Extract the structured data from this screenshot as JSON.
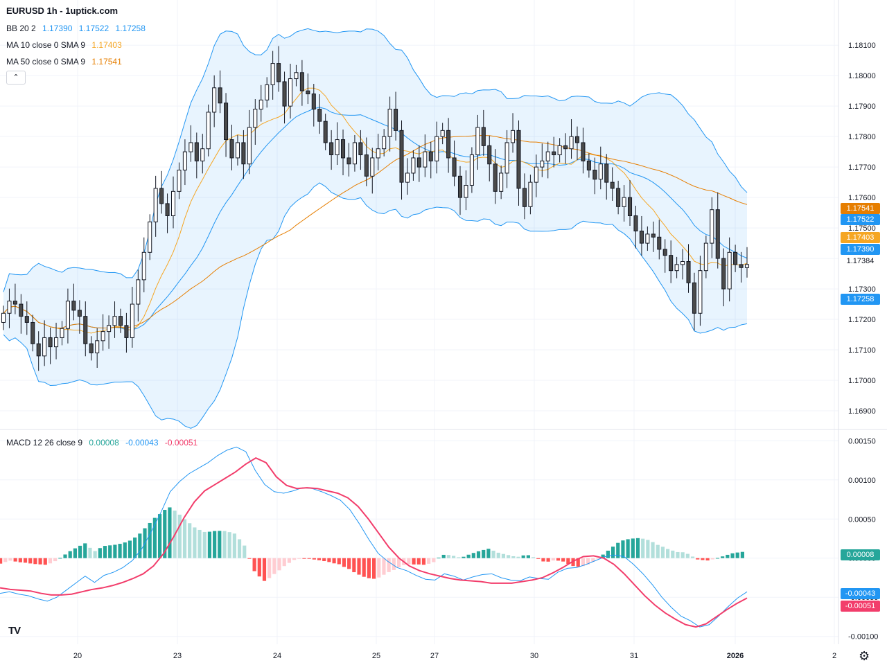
{
  "header": {
    "title": "EURUSD 1h - 1uptick.com"
  },
  "legend": {
    "bb": {
      "label": "BB 20 2",
      "v1": "1.17390",
      "v2": "1.17522",
      "v3": "1.17258",
      "color": "#2196f3"
    },
    "ma10": {
      "label": "MA 10 close 0 SMA 9",
      "value": "1.17403",
      "color": "#f5a623"
    },
    "ma50": {
      "label": "MA 50 close 0 SMA 9",
      "value": "1.17541",
      "color": "#e67e00"
    },
    "macd": {
      "label": "MACD 12 26 close 9",
      "hist": "0.00008",
      "macd": "-0.00043",
      "signal": "-0.00051",
      "hist_color": "#26a69a",
      "macd_color": "#2196f3",
      "signal_color": "#f23d6b"
    }
  },
  "price_tags": [
    {
      "name": "ma50-tag",
      "text": "1.17541",
      "price": 1.17541,
      "color": "#e67e00"
    },
    {
      "name": "bb-upper-tag",
      "text": "1.17522",
      "price": 1.17522,
      "color": "#2196f3"
    },
    {
      "name": "ma10-tag",
      "text": "1.17403",
      "price": 1.17403,
      "color": "#f5a623"
    },
    {
      "name": "bb-basis-tag",
      "text": "1.17390",
      "price": 1.1739,
      "color": "#2196f3"
    },
    {
      "name": "last-price-tag",
      "text": "1.17384",
      "price": 1.17384,
      "color": "#ffffff"
    },
    {
      "name": "bb-lower-tag",
      "text": "1.17258",
      "price": 1.17258,
      "color": "#2196f3"
    }
  ],
  "macd_tags": [
    {
      "name": "hist-tag",
      "text": "0.00008",
      "value": 8e-05,
      "color": "#26a69a"
    },
    {
      "name": "macd-tag",
      "text": "-0.00043",
      "value": -0.00043,
      "color": "#2196f3"
    },
    {
      "name": "signal-tag",
      "text": "-0.00051",
      "value": -0.00051,
      "color": "#f23d6b"
    }
  ],
  "chart_data": {
    "type": "candlestick",
    "price_axis": {
      "ylim": [
        1.1685,
        1.1818
      ],
      "ticks": [
        "1.16900",
        "1.17000",
        "1.17100",
        "1.17200",
        "1.17300",
        "1.17400",
        "1.17500",
        "1.17600",
        "1.17700",
        "1.17800",
        "1.17900",
        "1.18000",
        "1.18100"
      ]
    },
    "macd_axis": {
      "ylim": [
        -0.0011,
        0.0016
      ],
      "ticks": [
        "-0.00100",
        "-0.00050",
        "0.00000",
        "0.00050",
        "0.00100",
        "0.00150"
      ]
    },
    "time_axis": {
      "labels": [
        "20",
        "23",
        "24",
        "25",
        "27",
        "30",
        "31",
        "2026",
        "2"
      ]
    },
    "closes": [
      1.1722,
      1.1726,
      1.1725,
      1.1721,
      1.1719,
      1.1712,
      1.1708,
      1.1714,
      1.1711,
      1.1714,
      1.1717,
      1.1726,
      1.1723,
      1.1721,
      1.1712,
      1.1709,
      1.1713,
      1.1716,
      1.1718,
      1.1721,
      1.1718,
      1.1714,
      1.1725,
      1.1733,
      1.1742,
      1.1752,
      1.1763,
      1.1758,
      1.1754,
      1.1762,
      1.1769,
      1.1775,
      1.1778,
      1.1772,
      1.1776,
      1.1788,
      1.1796,
      1.1791,
      1.1779,
      1.1773,
      1.1778,
      1.1771,
      1.1783,
      1.1789,
      1.1792,
      1.1797,
      1.1804,
      1.1798,
      1.179,
      1.1799,
      1.1801,
      1.1795,
      1.1794,
      1.1789,
      1.1785,
      1.1778,
      1.1774,
      1.1779,
      1.1773,
      1.1771,
      1.1778,
      1.1774,
      1.1767,
      1.1773,
      1.1776,
      1.178,
      1.1789,
      1.1782,
      1.1765,
      1.1768,
      1.1773,
      1.177,
      1.1775,
      1.1772,
      1.178,
      1.1782,
      1.1773,
      1.1767,
      1.176,
      1.1764,
      1.1774,
      1.1783,
      1.1777,
      1.1771,
      1.1762,
      1.1768,
      1.1778,
      1.1782,
      1.1763,
      1.1757,
      1.1765,
      1.177,
      1.1772,
      1.1775,
      1.1774,
      1.1777,
      1.1776,
      1.178,
      1.1778,
      1.1772,
      1.1769,
      1.1766,
      1.1771,
      1.1765,
      1.1763,
      1.1757,
      1.176,
      1.1754,
      1.1749,
      1.1745,
      1.1748,
      1.1747,
      1.1743,
      1.1741,
      1.1736,
      1.1738,
      1.1739,
      1.1732,
      1.1722,
      1.1736,
      1.1745,
      1.1756,
      1.174,
      1.173,
      1.1742,
      1.1738,
      1.1737,
      1.1738
    ],
    "macd": [
      -0.00045,
      -0.00043,
      -0.00046,
      -0.00048,
      -0.00052,
      -0.00055,
      -0.0005,
      -0.00041,
      -0.00032,
      -0.00023,
      -0.00031,
      -0.00022,
      -0.00018,
      -0.00012,
      -3e-05,
      0.00012,
      0.00034,
      0.00058,
      0.00085,
      0.00098,
      0.00108,
      0.00115,
      0.00122,
      0.00131,
      0.00138,
      0.00142,
      0.00136,
      0.00112,
      0.00094,
      0.00085,
      0.00083,
      0.00086,
      0.0009,
      0.00089,
      0.00085,
      0.0008,
      0.00074,
      0.00062,
      0.00044,
      0.00024,
      6e-05,
      -4e-05,
      -0.00012,
      -0.00016,
      -0.00022,
      -0.00027,
      -0.00028,
      -0.0002,
      -0.00023,
      -0.00028,
      -0.00024,
      -0.00021,
      -0.0002,
      -0.00025,
      -0.00028,
      -0.00029,
      -0.00024,
      -0.00026,
      -0.00027,
      -0.00018,
      -0.00013,
      -0.00012,
      -8e-05,
      -3e-05,
      2e-05,
      4e-05,
      2e-05,
      -8e-05,
      -0.0002,
      -0.00034,
      -0.0005,
      -0.00063,
      -0.00074,
      -0.0008,
      -0.00088,
      -0.00085,
      -0.00074,
      -0.00062,
      -0.00051,
      -0.00043
    ],
    "signal": [
      -0.00038,
      -0.0004,
      -0.00041,
      -0.00042,
      -0.00045,
      -0.00047,
      -0.00047,
      -0.00046,
      -0.00043,
      -0.0004,
      -0.00038,
      -0.00035,
      -0.00031,
      -0.00026,
      -0.0002,
      -0.0001,
      6e-05,
      0.00028,
      0.00052,
      0.00072,
      0.00086,
      0.00094,
      0.00102,
      0.0011,
      0.0012,
      0.00128,
      0.00122,
      0.00104,
      0.00093,
      0.00089,
      0.0009,
      0.00089,
      0.00086,
      0.00083,
      0.00077,
      0.00066,
      0.0005,
      0.00032,
      0.00014,
      0.0,
      -0.0001,
      -0.00016,
      -0.0002,
      -0.00023,
      -0.00026,
      -0.00028,
      -0.00029,
      -0.0003,
      -0.00032,
      -0.00032,
      -0.00032,
      -0.0003,
      -0.00028,
      -0.00025,
      -0.00019,
      -0.00012,
      -4e-05,
      2e-05,
      3e-05,
      0.0,
      -8e-05,
      -0.0002,
      -0.00034,
      -0.00048,
      -0.0006,
      -0.0007,
      -0.00078,
      -0.00085,
      -0.00088,
      -0.00084,
      -0.00075,
      -0.00066,
      -0.00058,
      -0.00051
    ],
    "series_names": [
      "BB 20 2",
      "MA 10 close 0 SMA 9",
      "MA 50 close 0 SMA 9",
      "MACD 12 26 close 9"
    ]
  }
}
